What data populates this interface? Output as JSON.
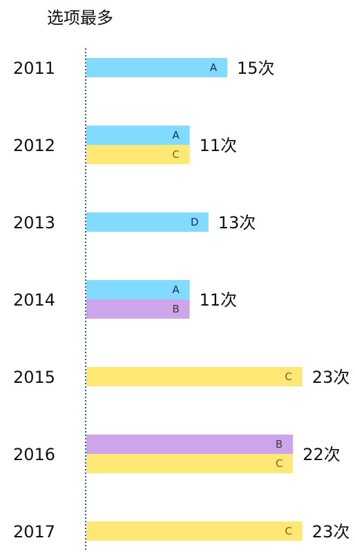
{
  "chart_data": {
    "type": "bar",
    "title": "选项最多",
    "orientation": "horizontal",
    "grouped": true,
    "xlim": [
      0,
      25
    ],
    "grid": false,
    "axis_line": "dotted-vertical",
    "option_colors": {
      "A": "#80dbff",
      "B": "#cda5eb",
      "C": "#ffe974",
      "D": "#80dbff"
    },
    "option_text_colors": {
      "A": "#1a2a6c",
      "B": "#3a3a3a",
      "C": "#8a5a1a",
      "D": "#1a2a6c"
    },
    "groups": [
      {
        "year": "2011",
        "count": 15,
        "count_label": "15次",
        "options": [
          "A"
        ]
      },
      {
        "year": "2012",
        "count": 11,
        "count_label": "11次",
        "options": [
          "A",
          "C"
        ]
      },
      {
        "year": "2013",
        "count": 13,
        "count_label": "13次",
        "options": [
          "D"
        ]
      },
      {
        "year": "2014",
        "count": 11,
        "count_label": "11次",
        "options": [
          "A",
          "B"
        ]
      },
      {
        "year": "2015",
        "count": 23,
        "count_label": "23次",
        "options": [
          "C"
        ]
      },
      {
        "year": "2016",
        "count": 22,
        "count_label": "22次",
        "options": [
          "B",
          "C"
        ]
      },
      {
        "year": "2017",
        "count": 23,
        "count_label": "23次",
        "options": [
          "C"
        ]
      }
    ]
  }
}
